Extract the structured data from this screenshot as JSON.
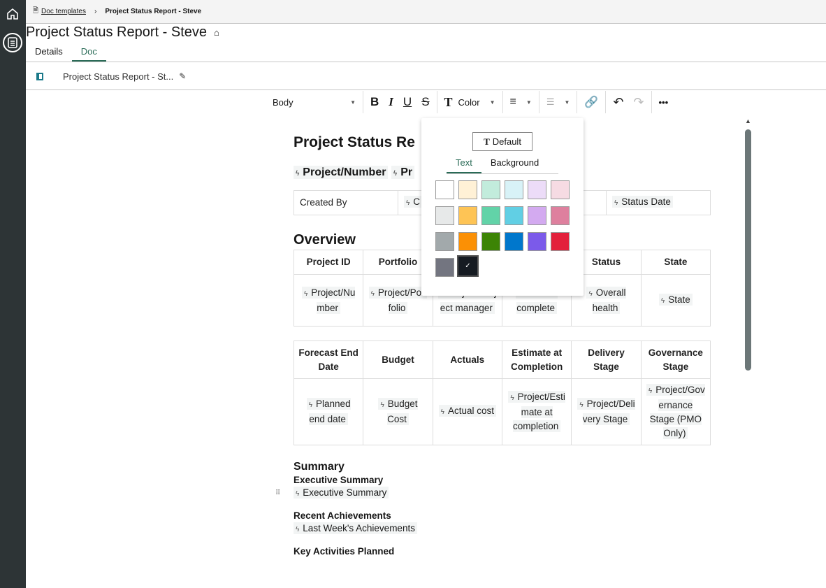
{
  "breadcrumb": {
    "parent": "Doc templates",
    "current": "Project Status Report - Steve"
  },
  "page_title": "Project Status Report - Steve",
  "tabs": [
    {
      "label": "Details"
    },
    {
      "label": "Doc"
    }
  ],
  "doc_name": "Project Status Report - St...",
  "toolbar": {
    "style": "Body",
    "color_label": "Color"
  },
  "color_popup": {
    "default_label": "Default",
    "tabs": [
      "Text",
      "Background"
    ],
    "swatches": [
      "#ffffff",
      "#fff1d6",
      "#c2ecdc",
      "#d8f2f7",
      "#ecdcf8",
      "#f6dbe3",
      "#e7e9e9",
      "#fec455",
      "#62d3a8",
      "#61cfe4",
      "#d3aaf0",
      "#de809e",
      "#a2a9ab",
      "#fb9005",
      "#3c8405",
      "#0077cc",
      "#7b5aea",
      "#e3213b",
      "#737580",
      "#161b22"
    ],
    "selected": "#161b22"
  },
  "doc": {
    "title": "Project Status Re",
    "fields": [
      "Project/Number",
      "Pr"
    ],
    "meta": [
      "Created By",
      "C",
      "",
      "Status Date"
    ],
    "overview_heading": "Overview",
    "overview_headers": [
      "Project ID",
      "Portfolio",
      "",
      "",
      "Status",
      "State"
    ],
    "overview_values": [
      "Project/Number",
      "Project/Portfolio",
      "Project/Project manager",
      "Percent complete",
      "Overall health",
      "State"
    ],
    "fin_headers": [
      "Forecast End Date",
      "Budget",
      "Actuals",
      "Estimate at Completion",
      "Delivery Stage",
      "Governance Stage"
    ],
    "fin_values": [
      "Planned end date",
      "Budget Cost",
      "Actual cost",
      "Project/Estimate at completion",
      "Project/Delivery Stage",
      "Project/Governance Stage (PMO Only)"
    ],
    "summary_heading": "Summary",
    "sections": [
      {
        "title": "Executive Summary",
        "value": "Executive Summary"
      },
      {
        "title": "Recent Achievements",
        "value": "Last Week's Achievements"
      },
      {
        "title": "Key Activities Planned",
        "value": ""
      }
    ]
  }
}
